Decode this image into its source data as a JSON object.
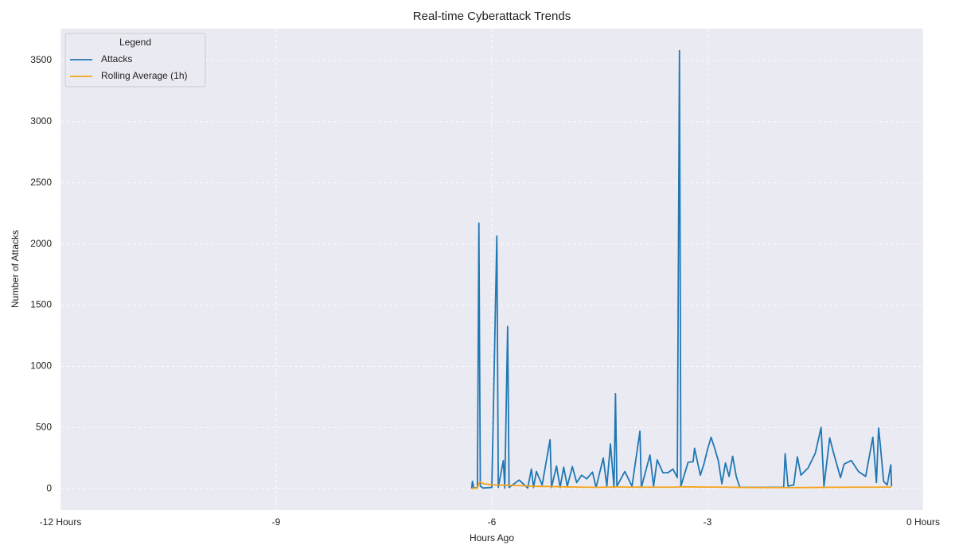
{
  "chart_data": {
    "type": "line",
    "title": "Real-time Cyberattack Trends",
    "x_label": "Hours Ago",
    "y_label": "Number of Attacks",
    "legend_title": "Legend",
    "legend": "upper left",
    "grid": true,
    "xlim": [
      -12,
      0
    ],
    "ylim": [
      -175,
      3760
    ],
    "xticks": [
      {
        "value": -12,
        "label": "-12 Hours"
      },
      -9,
      -6,
      -3,
      {
        "value": 0,
        "label": "0 Hours"
      }
    ],
    "yticks": [
      0,
      500,
      1000,
      1500,
      2000,
      2500,
      3000,
      3500
    ],
    "x": [
      -6.28,
      -6.27,
      -6.25,
      -6.2,
      -6.18,
      -6.16,
      -6.12,
      -6.0,
      -5.93,
      -5.91,
      -5.84,
      -5.82,
      -5.78,
      -5.76,
      -5.62,
      -5.5,
      -5.45,
      -5.42,
      -5.38,
      -5.3,
      -5.19,
      -5.17,
      -5.1,
      -5.05,
      -5.0,
      -4.95,
      -4.88,
      -4.82,
      -4.75,
      -4.68,
      -4.6,
      -4.55,
      -4.45,
      -4.4,
      -4.35,
      -4.3,
      -4.28,
      -4.26,
      -4.15,
      -4.05,
      -3.94,
      -3.92,
      -3.8,
      -3.75,
      -3.7,
      -3.62,
      -3.55,
      -3.48,
      -3.42,
      -3.39,
      -3.37,
      -3.27,
      -3.2,
      -3.18,
      -3.1,
      -3.05,
      -3.0,
      -2.95,
      -2.9,
      -2.85,
      -2.8,
      -2.75,
      -2.7,
      -2.65,
      -2.6,
      -2.55,
      -1.94,
      -1.92,
      -1.88,
      -1.8,
      -1.75,
      -1.7,
      -1.6,
      -1.5,
      -1.42,
      -1.38,
      -1.3,
      -1.25,
      -1.15,
      -1.1,
      -1.0,
      -0.9,
      -0.8,
      -0.7,
      -0.65,
      -0.62,
      -0.6,
      -0.55,
      -0.5,
      -0.45,
      -0.44
    ],
    "series": [
      {
        "name": "Attacks",
        "color": "#1f77b4",
        "values": [
          0,
          60,
          5,
          10,
          2170,
          20,
          5,
          10,
          2065,
          10,
          230,
          5,
          1325,
          10,
          70,
          5,
          160,
          10,
          140,
          30,
          400,
          10,
          185,
          10,
          175,
          20,
          180,
          50,
          110,
          80,
          135,
          10,
          250,
          20,
          365,
          10,
          775,
          20,
          140,
          20,
          470,
          10,
          275,
          20,
          235,
          130,
          130,
          160,
          90,
          3580,
          20,
          215,
          220,
          330,
          110,
          200,
          320,
          420,
          330,
          230,
          40,
          210,
          100,
          265,
          100,
          10,
          10,
          285,
          20,
          30,
          260,
          110,
          170,
          290,
          500,
          20,
          415,
          300,
          90,
          200,
          230,
          140,
          100,
          420,
          50,
          495,
          380,
          60,
          30,
          195,
          20
        ]
      },
      {
        "name": "Rolling Average (1h)",
        "color": "#f5a31a",
        "values": [
          0,
          2,
          3,
          5,
          45,
          55,
          40,
          32,
          30,
          30,
          28,
          28,
          27,
          27,
          25,
          22,
          20,
          20,
          19,
          18,
          18,
          17,
          16,
          15,
          15,
          14,
          14,
          13,
          12,
          12,
          11,
          11,
          12,
          12,
          13,
          13,
          14,
          14,
          13,
          12,
          13,
          13,
          12,
          12,
          12,
          12,
          12,
          12,
          12,
          15,
          15,
          14,
          14,
          14,
          13,
          13,
          13,
          13,
          13,
          12,
          12,
          12,
          11,
          11,
          11,
          10,
          8,
          8,
          8,
          8,
          9,
          9,
          9,
          10,
          10,
          10,
          11,
          11,
          11,
          11,
          12,
          12,
          12,
          12,
          12,
          13,
          13,
          13,
          13,
          13,
          13
        ]
      }
    ]
  }
}
